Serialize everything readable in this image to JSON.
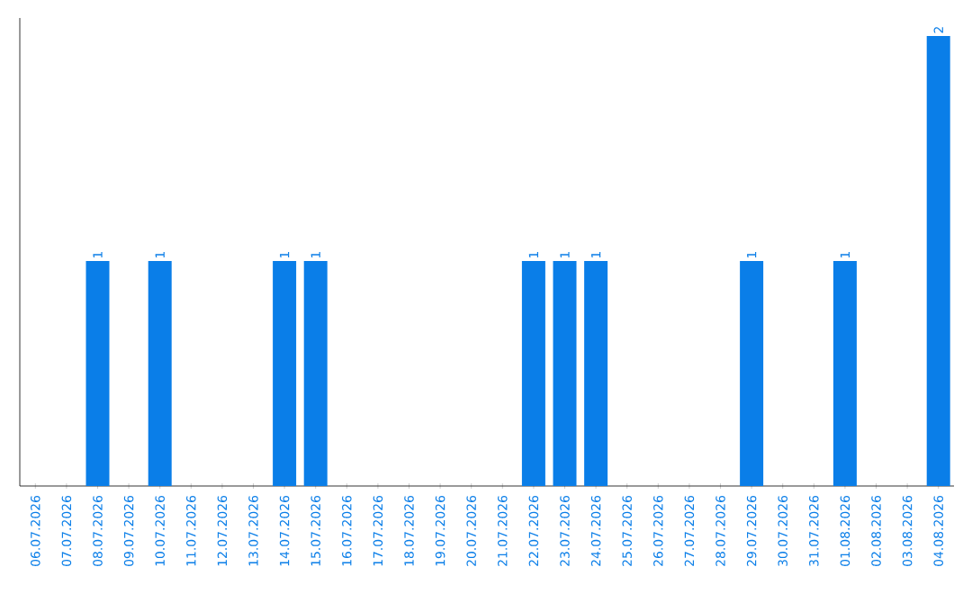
{
  "chart_data": {
    "type": "bar",
    "categories": [
      "06.07.2026",
      "07.07.2026",
      "08.07.2026",
      "09.07.2026",
      "10.07.2026",
      "11.07.2026",
      "12.07.2026",
      "13.07.2026",
      "14.07.2026",
      "15.07.2026",
      "16.07.2026",
      "17.07.2026",
      "18.07.2026",
      "19.07.2026",
      "20.07.2026",
      "21.07.2026",
      "22.07.2026",
      "23.07.2026",
      "24.07.2026",
      "25.07.2026",
      "26.07.2026",
      "27.07.2026",
      "28.07.2026",
      "29.07.2026",
      "30.07.2026",
      "31.07.2026",
      "01.08.2026",
      "02.08.2026",
      "03.08.2026",
      "04.08.2026"
    ],
    "values": [
      0,
      0,
      1,
      0,
      1,
      0,
      0,
      0,
      1,
      1,
      0,
      0,
      0,
      0,
      0,
      0,
      1,
      1,
      1,
      0,
      0,
      0,
      0,
      1,
      0,
      0,
      1,
      0,
      0,
      2
    ],
    "value_labels": [
      null,
      null,
      "1",
      null,
      "1",
      null,
      null,
      null,
      "1",
      "1",
      null,
      null,
      null,
      null,
      null,
      null,
      "1",
      "1",
      "1",
      null,
      null,
      null,
      null,
      "1",
      null,
      null,
      "1",
      null,
      null,
      "2"
    ],
    "color": "#0a7ee8",
    "ylim": [
      0,
      2
    ],
    "tick_labels": "x",
    "grid": false
  }
}
